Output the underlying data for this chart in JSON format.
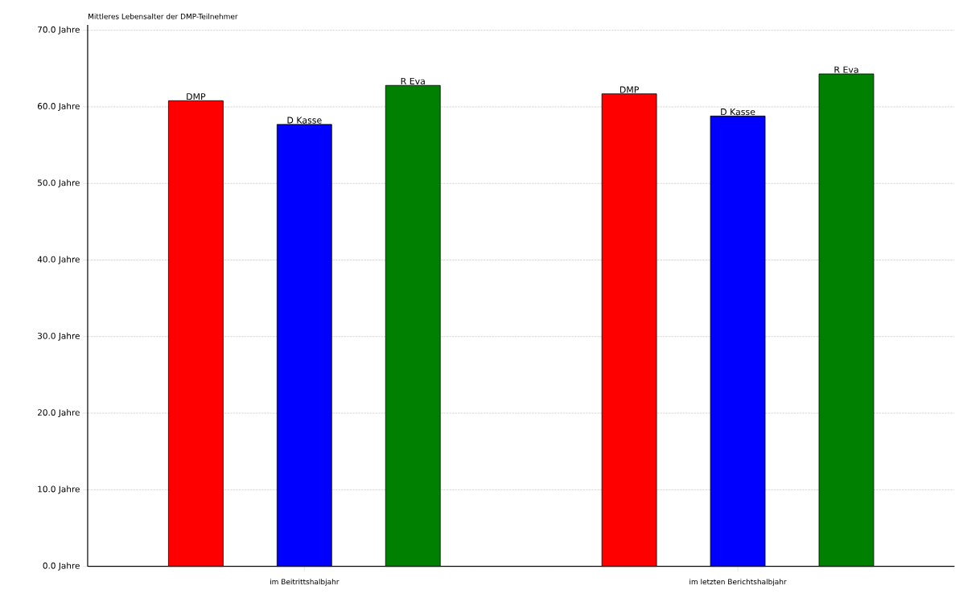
{
  "chart_data": {
    "type": "bar",
    "title": "Mittleres Lebensalter der DMP-Teilnehmer",
    "categories": [
      "im Beitrittshalbjahr",
      "im letzten Berichtshalbjahr"
    ],
    "series": [
      {
        "name": "DMP",
        "color": "#ff0000",
        "values": [
          60.8,
          61.7
        ]
      },
      {
        "name": "D Kasse",
        "color": "#0000ff",
        "values": [
          57.7,
          58.8
        ]
      },
      {
        "name": "R Eva",
        "color": "#008000",
        "values": [
          62.8,
          64.3
        ]
      }
    ],
    "ylim": [
      0,
      70.7
    ],
    "yticks": [
      {
        "value": 0,
        "label": "0.0 Jahre"
      },
      {
        "value": 10,
        "label": "10.0 Jahre"
      },
      {
        "value": 20,
        "label": "20.0 Jahre"
      },
      {
        "value": 30,
        "label": "30.0 Jahre"
      },
      {
        "value": 40,
        "label": "40.0 Jahre"
      },
      {
        "value": 50,
        "label": "50.0 Jahre"
      },
      {
        "value": 60,
        "label": "60.0 Jahre"
      },
      {
        "value": 70,
        "label": "70.0 Jahre"
      }
    ],
    "grid": "y",
    "legend": false
  }
}
